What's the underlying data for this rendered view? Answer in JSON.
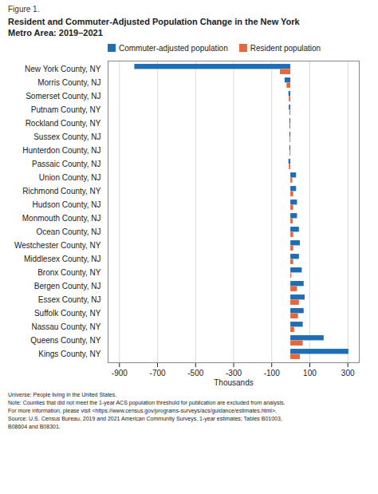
{
  "chart_data": {
    "type": "bar",
    "orientation": "horizontal",
    "annotations": [
      "Figure 1."
    ],
    "title": "Resident and Commuter-Adjusted Population Change in the New York\nMetro Area: 2019–2021",
    "caption": "Universe: People living in the United States.\nNote: Counties that did not meet the 1-year ACS population threshold for publication are excluded from analysis.\nFor more information, please visit <https://www.census.gov/programs-surveys/acs/guidance/estimates.html>.\nSource: U.S. Census Bureau, 2019 and 2021 American Community Surveys, 1-year estimates; Tables B01003,\nB08604 and B08301.",
    "categories": [
      "New York County, NY",
      "Morris County, NJ",
      "Somerset County, NJ",
      "Putnam County, NY",
      "Rockland County, NY",
      "Sussex County, NJ",
      "Hunterdon County, NJ",
      "Passaic County, NJ",
      "Union County, NJ",
      "Richmond County, NY",
      "Hudson County, NJ",
      "Monmouth County, NJ",
      "Ocean County, NJ",
      "Westchester County, NY",
      "Middlesex County, NJ",
      "Bronx County, NY",
      "Bergen County, NJ",
      "Essex County, NJ",
      "Suffolk County, NY",
      "Nassau County, NY",
      "Queens County, NY",
      "Kings County, NY"
    ],
    "series": [
      {
        "name": "Commuter-adjusted population",
        "color": "#1F6DB5",
        "values": [
          -820,
          -30,
          -10,
          -8,
          -5,
          -5,
          -5,
          -10,
          30,
          30,
          35,
          35,
          45,
          50,
          45,
          60,
          70,
          75,
          70,
          65,
          175,
          305
        ]
      },
      {
        "name": "Resident population",
        "color": "#E8663D",
        "values": [
          -55,
          -20,
          -8,
          -5,
          -5,
          -4,
          -4,
          -8,
          10,
          15,
          15,
          12,
          15,
          15,
          15,
          5,
          35,
          45,
          40,
          20,
          65,
          50
        ]
      }
    ],
    "xlabel": "Thousands",
    "xlim": [
      -960,
      360
    ],
    "xticks": [
      -900,
      -700,
      -500,
      -300,
      -100,
      100,
      300
    ],
    "grid": true,
    "legend": "top"
  }
}
